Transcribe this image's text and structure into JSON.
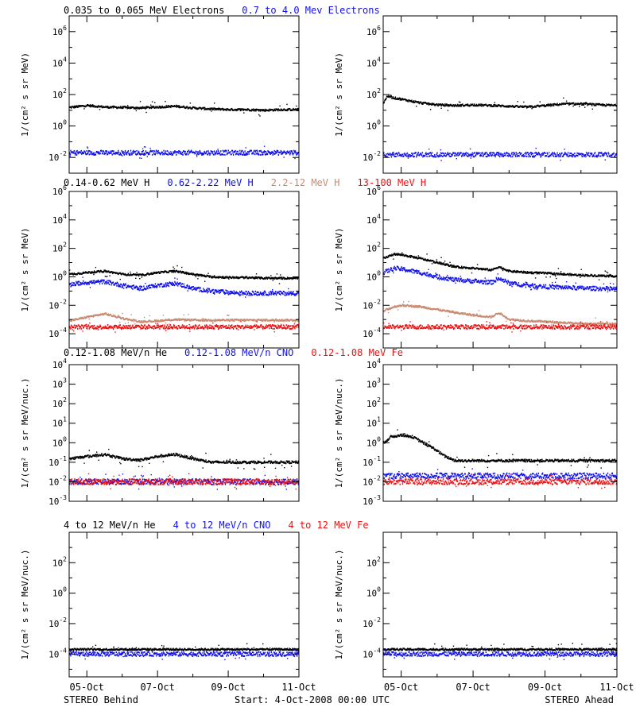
{
  "colors": {
    "black": "#000000",
    "blue": "#1010ee",
    "tan": "#c88a70",
    "red": "#ee1010"
  },
  "footer": {
    "left": "STEREO Behind",
    "center": "Start:  4-Oct-2008 00:00 UTC",
    "right": "STEREO Ahead"
  },
  "x_axis": {
    "tick_labels": [
      "05-Oct",
      "07-Oct",
      "09-Oct",
      "11-Oct"
    ],
    "tick_days": [
      5,
      7,
      9,
      11
    ],
    "range_days": [
      4.5,
      11.0
    ]
  },
  "chart_data": [
    {
      "type": "scatter",
      "row_title_parts": [
        {
          "text": "0.035 to 0.065 MeV Electrons",
          "color": "black"
        },
        {
          "text": "0.7 to 4.0 Mev Electrons",
          "color": "blue"
        }
      ],
      "ylabel": "1/(cm² s sr MeV)",
      "yscale": "log",
      "ylim_exp": [
        -3,
        7
      ],
      "ytick_exps": [
        -2,
        0,
        2,
        4,
        6
      ],
      "panels": [
        {
          "id": "behind",
          "series": [
            {
              "name": "0.035 to 0.065 MeV Electrons",
              "color": "black",
              "x": [
                4.5,
                5.0,
                5.5,
                6.0,
                6.5,
                7.0,
                7.5,
                8.0,
                8.5,
                9.0,
                9.5,
                10.0,
                10.5,
                11.0
              ],
              "y": [
                15,
                20,
                16,
                15,
                14,
                16,
                18,
                14,
                12,
                11,
                11,
                10,
                11,
                11
              ]
            },
            {
              "name": "0.7 to 4.0 Mev Electrons",
              "color": "blue",
              "x": [
                4.5,
                6.0,
                7.5,
                9.0,
                11.0
              ],
              "y": [
                0.02,
                0.02,
                0.02,
                0.02,
                0.02
              ]
            }
          ]
        },
        {
          "id": "ahead",
          "series": [
            {
              "name": "0.035 to 0.065 MeV Electrons",
              "color": "black",
              "x": [
                4.5,
                4.6,
                4.8,
                5.0,
                5.5,
                6.0,
                6.5,
                7.0,
                7.5,
                8.0,
                8.5,
                9.0,
                9.5,
                10.0,
                10.5,
                11.0
              ],
              "y": [
                30,
                80,
                60,
                50,
                30,
                22,
                20,
                22,
                20,
                18,
                16,
                20,
                25,
                25,
                22,
                20
              ]
            },
            {
              "name": "0.7 to 4.0 Mev Electrons",
              "color": "blue",
              "x": [
                4.5,
                6.0,
                7.5,
                9.0,
                11.0
              ],
              "y": [
                0.015,
                0.015,
                0.015,
                0.015,
                0.015
              ]
            }
          ]
        }
      ]
    },
    {
      "type": "scatter",
      "row_title_parts": [
        {
          "text": "0.14-0.62 MeV H",
          "color": "black"
        },
        {
          "text": "0.62-2.22 MeV H",
          "color": "blue"
        },
        {
          "text": "2.2-12 MeV H",
          "color": "tan"
        },
        {
          "text": "13-100 MeV H",
          "color": "red"
        }
      ],
      "ylabel": "1/(cm² s sr MeV)",
      "yscale": "log",
      "ylim_exp": [
        -5,
        6
      ],
      "ytick_exps": [
        -4,
        -2,
        0,
        2,
        4,
        6
      ],
      "panels": [
        {
          "id": "behind",
          "series": [
            {
              "name": "0.14-0.62 MeV H",
              "color": "black",
              "x": [
                4.5,
                5.0,
                5.5,
                6.0,
                6.5,
                7.0,
                7.5,
                8.0,
                8.5,
                9.0,
                9.5,
                10.0,
                10.5,
                11.0
              ],
              "y": [
                1.5,
                2.0,
                2.5,
                1.5,
                1.3,
                2.0,
                2.5,
                1.5,
                1.0,
                0.9,
                0.9,
                0.8,
                0.8,
                0.8
              ]
            },
            {
              "name": "0.62-2.22 MeV H",
              "color": "blue",
              "x": [
                4.5,
                5.0,
                5.5,
                6.0,
                6.5,
                7.0,
                7.5,
                8.0,
                8.5,
                9.0,
                9.5,
                10.0,
                10.5,
                11.0
              ],
              "y": [
                0.3,
                0.4,
                0.45,
                0.25,
                0.15,
                0.25,
                0.35,
                0.15,
                0.1,
                0.08,
                0.07,
                0.07,
                0.07,
                0.07
              ]
            },
            {
              "name": "2.2-12 MeV H",
              "color": "tan",
              "x": [
                4.5,
                5.0,
                5.5,
                6.0,
                6.5,
                7.0,
                7.5,
                8.0
              ],
              "y": [
                0.0008,
                0.0015,
                0.0025,
                0.0012,
                0.0007,
                0.0008,
                0.001,
                0.0009
              ]
            },
            {
              "name": "13-100 MeV H",
              "color": "red",
              "x": [
                4.5,
                6.0,
                7.5,
                9.0,
                11.0
              ],
              "y": [
                0.0003,
                0.0003,
                0.0003,
                0.0003,
                0.0003
              ]
            }
          ]
        },
        {
          "id": "ahead",
          "series": [
            {
              "name": "0.14-0.62 MeV H",
              "color": "black",
              "x": [
                4.5,
                4.8,
                5.0,
                5.5,
                6.0,
                6.5,
                7.0,
                7.5,
                7.7,
                8.0,
                8.5,
                9.0,
                9.5,
                10.0,
                10.5,
                11.0
              ],
              "y": [
                20,
                40,
                35,
                20,
                10,
                5,
                4,
                3,
                5,
                2.5,
                2,
                1.8,
                1.5,
                1.3,
                1.2,
                1.1
              ]
            },
            {
              "name": "0.62-2.22 MeV H",
              "color": "blue",
              "x": [
                4.5,
                4.8,
                5.0,
                5.5,
                6.0,
                6.5,
                7.0,
                7.5,
                7.7,
                8.0,
                8.5,
                9.0,
                9.5,
                10.0,
                10.5,
                11.0
              ],
              "y": [
                2,
                4,
                3.5,
                2,
                1,
                0.6,
                0.5,
                0.4,
                0.8,
                0.35,
                0.25,
                0.2,
                0.18,
                0.16,
                0.15,
                0.14
              ]
            },
            {
              "name": "2.2-12 MeV H",
              "color": "tan",
              "x": [
                4.5,
                4.8,
                5.0,
                5.5,
                6.0,
                6.5,
                7.0,
                7.5,
                7.7,
                8.0,
                8.5,
                9.0,
                9.5,
                10.0,
                10.5,
                11.0
              ],
              "y": [
                0.004,
                0.008,
                0.01,
                0.008,
                0.005,
                0.003,
                0.002,
                0.0015,
                0.003,
                0.001,
                0.0008,
                0.0007,
                0.0006,
                0.0005,
                0.0005,
                0.0005
              ]
            },
            {
              "name": "13-100 MeV H",
              "color": "red",
              "x": [
                4.5,
                6.0,
                7.5,
                9.0,
                11.0
              ],
              "y": [
                0.0003,
                0.0003,
                0.0003,
                0.0003,
                0.0003
              ]
            }
          ]
        }
      ]
    },
    {
      "type": "scatter",
      "row_title_parts": [
        {
          "text": "0.12-1.08 MeV/n He",
          "color": "black"
        },
        {
          "text": "0.12-1.08 MeV/n CNO",
          "color": "blue"
        },
        {
          "text": "0.12-1.08 MeV Fe",
          "color": "red"
        }
      ],
      "ylabel": "1/(cm² s sr MeV/nuc.)",
      "yscale": "log",
      "ylim_exp": [
        -3,
        4
      ],
      "ytick_exps": [
        -3,
        -2,
        -1,
        0,
        1,
        2,
        3,
        4
      ],
      "panels": [
        {
          "id": "behind",
          "series": [
            {
              "name": "0.12-1.08 MeV/n He",
              "color": "black",
              "x": [
                4.5,
                5.0,
                5.5,
                6.0,
                6.5,
                7.0,
                7.5,
                8.0,
                8.5,
                9.0,
                9.5,
                10.0,
                10.5,
                11.0
              ],
              "y": [
                0.15,
                0.2,
                0.25,
                0.15,
                0.13,
                0.2,
                0.25,
                0.15,
                0.1,
                0.1,
                0.1,
                0.1,
                0.1,
                0.1
              ]
            },
            {
              "name": "0.12-1.08 MeV/n CNO",
              "color": "blue",
              "x": [
                4.5,
                6.0,
                7.5,
                9.0,
                11.0
              ],
              "y": [
                0.01,
                0.01,
                0.01,
                0.01,
                0.01
              ]
            },
            {
              "name": "0.12-1.08 MeV Fe",
              "color": "red",
              "x": [
                4.5,
                6.0,
                7.5,
                9.0,
                11.0
              ],
              "y": [
                0.01,
                0.01,
                0.01,
                0.01,
                0.01
              ]
            }
          ]
        },
        {
          "id": "ahead",
          "series": [
            {
              "name": "0.12-1.08 MeV/n He",
              "color": "black",
              "x": [
                4.5,
                4.7,
                5.0,
                5.3,
                5.6,
                5.9,
                6.2,
                6.5,
                7.0,
                7.5,
                8.0,
                8.5,
                9.0,
                9.5,
                10.0,
                10.5,
                11.0
              ],
              "y": [
                1.0,
                2.0,
                2.5,
                2.0,
                1.0,
                0.5,
                0.2,
                0.12,
                0.12,
                0.12,
                0.12,
                0.12,
                0.12,
                0.12,
                0.12,
                0.12,
                0.12
              ]
            },
            {
              "name": "0.12-1.08 MeV/n CNO",
              "color": "blue",
              "x": [
                4.5,
                6.0,
                7.5,
                9.0,
                11.0
              ],
              "y": [
                0.02,
                0.02,
                0.02,
                0.02,
                0.02
              ]
            },
            {
              "name": "0.12-1.08 MeV Fe",
              "color": "red",
              "x": [
                4.5,
                6.0,
                7.5,
                9.0,
                11.0
              ],
              "y": [
                0.01,
                0.01,
                0.01,
                0.01,
                0.01
              ]
            }
          ]
        }
      ]
    },
    {
      "type": "scatter",
      "row_title_parts": [
        {
          "text": "4 to 12 MeV/n He",
          "color": "black"
        },
        {
          "text": "4 to 12 MeV/n CNO",
          "color": "blue"
        },
        {
          "text": "4 to 12 MeV Fe",
          "color": "red"
        }
      ],
      "ylabel": "1/(cm² s sr MeV/nuc.)",
      "yscale": "log",
      "ylim_exp": [
        -5.5,
        4
      ],
      "ytick_exps": [
        -4,
        -2,
        0,
        2
      ],
      "panels": [
        {
          "id": "behind",
          "series": [
            {
              "name": "4 to 12 MeV/n He",
              "color": "black",
              "x": [
                4.5,
                6.0,
                7.5,
                9.0,
                11.0
              ],
              "y": [
                0.0002,
                0.0002,
                0.0002,
                0.0002,
                0.0002
              ]
            },
            {
              "name": "4 to 12 MeV/n CNO",
              "color": "blue",
              "x": [
                4.5,
                6.0,
                7.5,
                9.0,
                11.0
              ],
              "y": [
                0.0001,
                0.0001,
                0.0001,
                0.0001,
                0.0001
              ]
            }
          ]
        },
        {
          "id": "ahead",
          "series": [
            {
              "name": "4 to 12 MeV/n He",
              "color": "black",
              "x": [
                4.5,
                6.0,
                7.5,
                9.0,
                11.0
              ],
              "y": [
                0.0002,
                0.0002,
                0.0002,
                0.0002,
                0.0002
              ]
            },
            {
              "name": "4 to 12 MeV/n CNO",
              "color": "blue",
              "x": [
                4.5,
                6.0,
                7.5,
                9.0,
                11.0
              ],
              "y": [
                0.0001,
                0.0001,
                0.0001,
                0.0001,
                0.0001
              ]
            }
          ]
        }
      ]
    }
  ]
}
